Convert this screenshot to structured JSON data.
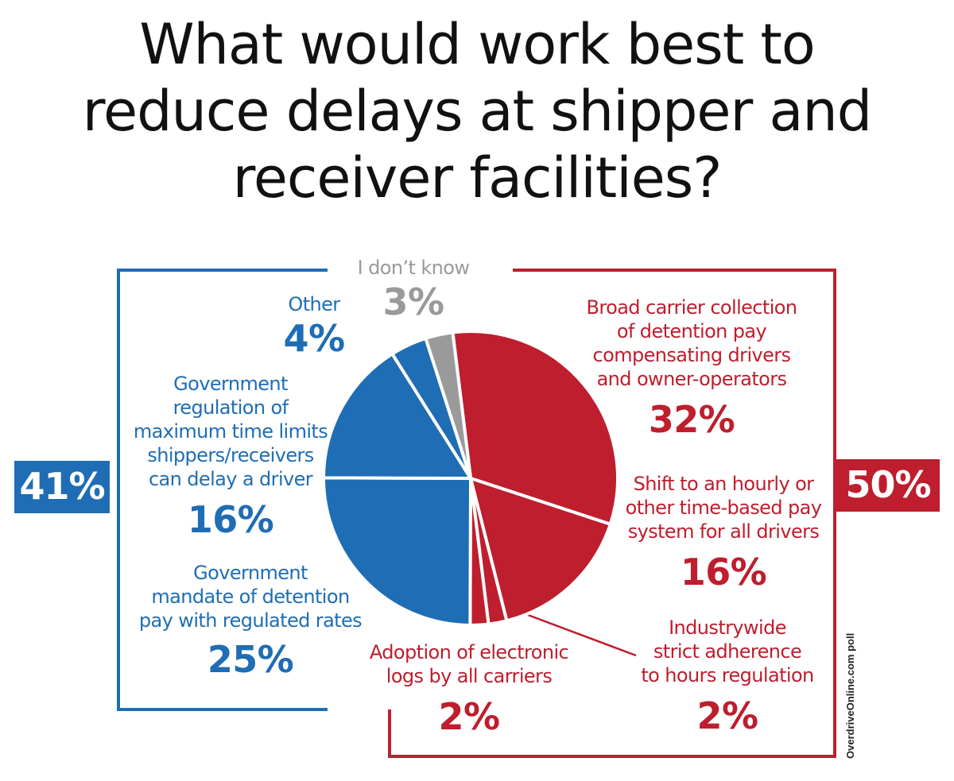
{
  "chart_data": {
    "type": "pie",
    "title": "What would work best to reduce delays at shipper and receiver facilities?",
    "title_lines": [
      "What would work best to",
      "reduce delays at shipper and",
      "receiver facilities?"
    ],
    "slices": [
      {
        "label_lines": [
          "Broad carrier collection",
          "of detention pay",
          "compensating drivers",
          "and owner-operators"
        ],
        "value": 32,
        "value_label": "32%",
        "color": "#be1e2d"
      },
      {
        "label_lines": [
          "Shift to an hourly or",
          "other time-based pay",
          "system for all drivers"
        ],
        "value": 16,
        "value_label": "16%",
        "color": "#be1e2d"
      },
      {
        "label_lines": [
          "Industrywide",
          "strict adherence",
          "to hours regulation"
        ],
        "value": 2,
        "value_label": "2%",
        "color": "#be1e2d"
      },
      {
        "label_lines": [
          "Adoption of electronic",
          "logs by all carriers"
        ],
        "value": 2,
        "value_label": "2%",
        "color": "#be1e2d"
      },
      {
        "label_lines": [
          "Government",
          "mandate of detention",
          "pay with regulated rates"
        ],
        "value": 25,
        "value_label": "25%",
        "color": "#1f6db4"
      },
      {
        "label_lines": [
          "Government",
          "regulation of",
          "maximum time limits",
          "shippers/receivers",
          "can delay a driver"
        ],
        "value": 16,
        "value_label": "16%",
        "color": "#1f6db4"
      },
      {
        "label_lines": [
          "Other"
        ],
        "value": 4,
        "value_label": "4%",
        "color": "#1f6db4"
      },
      {
        "label_lines": [
          "I don’t know"
        ],
        "value": 3,
        "value_label": "3%",
        "color": "#9a9a9a"
      }
    ],
    "group_totals": {
      "blue": "41%",
      "red": "50%"
    }
  },
  "source": "OverdriveOnline.com poll",
  "colors": {
    "blue": "#1f6db4",
    "red": "#be1e2d",
    "gray": "#9a9a9a"
  }
}
